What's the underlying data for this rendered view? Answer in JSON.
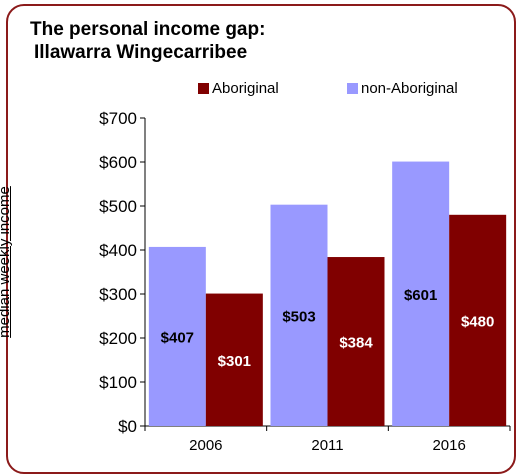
{
  "chart_data": {
    "type": "bar",
    "title": [
      "The personal income gap:",
      "Illawarra Wingecarribee"
    ],
    "ylabel": "median weekly income",
    "xlabel": "",
    "categories": [
      "2006",
      "2011",
      "2016"
    ],
    "ylim": [
      0,
      700
    ],
    "yticks": [
      0,
      100,
      200,
      300,
      400,
      500,
      600,
      700
    ],
    "ytick_labels": [
      "$0",
      "$100",
      "$200",
      "$300",
      "$400",
      "$500",
      "$600",
      "$700"
    ],
    "legend_placement": "top",
    "series": [
      {
        "name": "non-Aboriginal",
        "color": "#9999ff",
        "values": [
          407,
          503,
          601
        ],
        "labels": [
          "$407",
          "$503",
          "$601"
        ]
      },
      {
        "name": "Aboriginal",
        "color": "#800000",
        "values": [
          301,
          384,
          480
        ],
        "labels": [
          "$301",
          "$384",
          "$480"
        ]
      }
    ],
    "legend_order": [
      1,
      0
    ],
    "grid": false
  },
  "colors": {
    "frame": "#8b1a1a"
  }
}
